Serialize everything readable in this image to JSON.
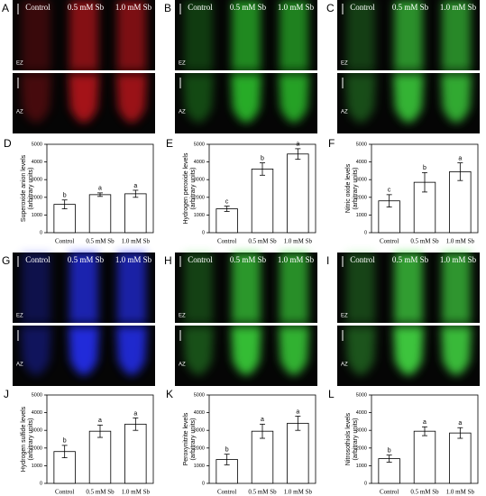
{
  "image_panels": [
    {
      "letter": "A",
      "labels": [
        "Control",
        "0.5 mM Sb",
        "1.0 mM Sb"
      ],
      "zones": [
        "EZ",
        "AZ"
      ],
      "color": "#c0141e"
    },
    {
      "letter": "B",
      "labels": [
        "Control",
        "0.5 mM Sb",
        "1.0 mM Sb"
      ],
      "zones": [
        "EZ",
        "AZ"
      ],
      "color": "#2ec82e"
    },
    {
      "letter": "C",
      "labels": [
        "Control",
        "0.5 mM Sb",
        "1.0 mM Sb"
      ],
      "zones": [
        "EZ",
        "AZ"
      ],
      "color": "#3cd23c"
    },
    {
      "letter": "G",
      "labels": [
        "Control",
        "0.5 mM Sb",
        "1.0 mM Sb"
      ],
      "zones": [
        "EZ",
        "AZ"
      ],
      "color": "#2830ff"
    },
    {
      "letter": "H",
      "labels": [
        "Control",
        "0.5 mM Sb",
        "1.0 mM Sb"
      ],
      "zones": [
        "EZ",
        "AZ"
      ],
      "color": "#3cdc3c"
    },
    {
      "letter": "I",
      "labels": [
        "Control",
        "0.5 mM Sb",
        "1.0 mM Sb"
      ],
      "zones": [
        "EZ",
        "AZ"
      ],
      "color": "#46e646"
    }
  ],
  "chart_data": [
    {
      "type": "bar",
      "panel": "D",
      "ylabel": [
        "Superoxide anion levels",
        "(arbitrary units)"
      ],
      "categories": [
        "Control",
        "0.5 mM Sb",
        "1.0 mM Sb"
      ],
      "values": [
        1600,
        2150,
        2200
      ],
      "errors": [
        250,
        100,
        200
      ],
      "annotations": [
        "b",
        "a",
        "a"
      ],
      "ylim": [
        0,
        5000
      ],
      "yticks": [
        0,
        1000,
        2000,
        3000,
        4000,
        5000
      ],
      "color": "#ffffff"
    },
    {
      "type": "bar",
      "panel": "E",
      "ylabel": [
        "Hydrogen peroxide levels",
        "(arbitrary units)"
      ],
      "categories": [
        "Control",
        "0.5 mM Sb",
        "1.0 mM Sb"
      ],
      "values": [
        1350,
        3600,
        4450
      ],
      "errors": [
        150,
        350,
        300
      ],
      "annotations": [
        "c",
        "b",
        "a"
      ],
      "ylim": [
        0,
        5000
      ],
      "yticks": [
        0,
        1000,
        2000,
        3000,
        4000,
        5000
      ],
      "color": "#ffffff"
    },
    {
      "type": "bar",
      "panel": "F",
      "ylabel": [
        "Nitric oxide levels",
        "(arbitrary units)"
      ],
      "categories": [
        "Control",
        "0.5 mM Sb",
        "1.0 mM Sb"
      ],
      "values": [
        1800,
        2850,
        3450
      ],
      "errors": [
        350,
        550,
        500
      ],
      "annotations": [
        "c",
        "b",
        "a"
      ],
      "ylim": [
        0,
        5000
      ],
      "yticks": [
        0,
        1000,
        2000,
        3000,
        4000,
        5000
      ],
      "color": "#ffffff"
    },
    {
      "type": "bar",
      "panel": "J",
      "ylabel": [
        "Hydrogen sulfide levels",
        "(arbitrary units)"
      ],
      "categories": [
        "Control",
        "0.5 mM Sb",
        "1.0 mM Sb"
      ],
      "values": [
        1800,
        2950,
        3350
      ],
      "errors": [
        350,
        350,
        350
      ],
      "annotations": [
        "b",
        "a",
        "a"
      ],
      "ylim": [
        0,
        5000
      ],
      "yticks": [
        0,
        1000,
        2000,
        3000,
        4000,
        5000
      ],
      "color": "#ffffff"
    },
    {
      "type": "bar",
      "panel": "K",
      "ylabel": [
        "Peroxynitrite levels",
        "(arbitrary units)"
      ],
      "categories": [
        "Control",
        "0.5 mM Sb",
        "1.0 mM Sb"
      ],
      "values": [
        1350,
        2950,
        3400
      ],
      "errors": [
        300,
        400,
        400
      ],
      "annotations": [
        "b",
        "a",
        "a"
      ],
      "ylim": [
        0,
        5000
      ],
      "yticks": [
        0,
        1000,
        2000,
        3000,
        4000,
        5000
      ],
      "color": "#ffffff"
    },
    {
      "type": "bar",
      "panel": "L",
      "ylabel": [
        "Nitrosothiols levels",
        "(arbitrary units)"
      ],
      "categories": [
        "Control",
        "0.5 mM Sb",
        "1.0 mM Sb"
      ],
      "values": [
        1400,
        2950,
        2850
      ],
      "errors": [
        200,
        250,
        300
      ],
      "annotations": [
        "b",
        "a",
        "a"
      ],
      "ylim": [
        0,
        5000
      ],
      "yticks": [
        0,
        1000,
        2000,
        3000,
        4000,
        5000
      ],
      "color": "#ffffff"
    }
  ]
}
